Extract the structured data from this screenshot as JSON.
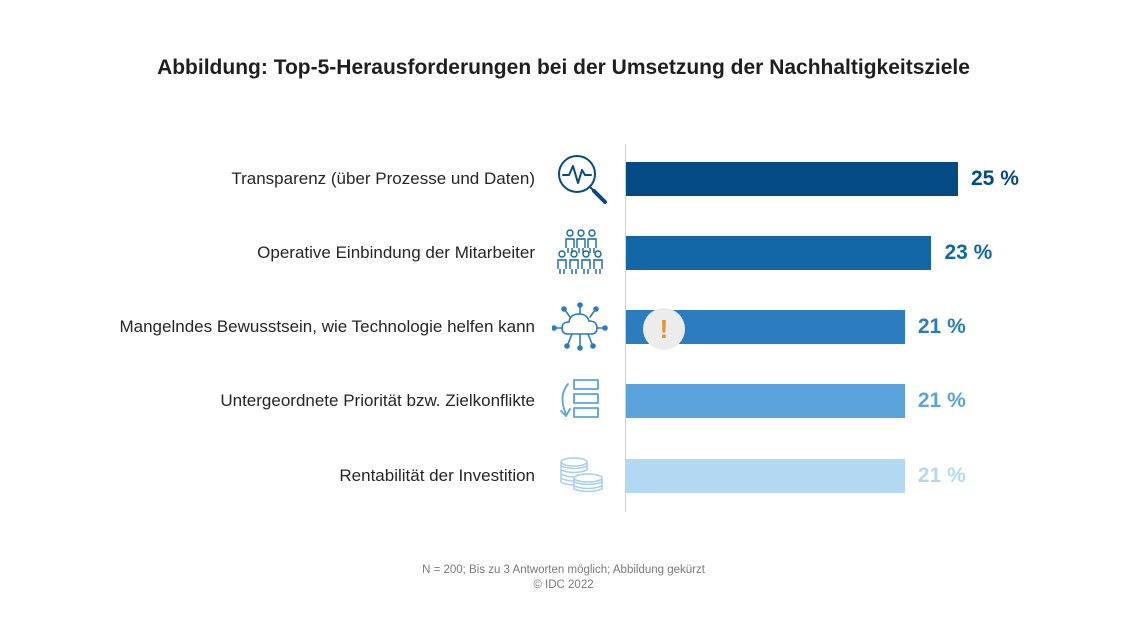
{
  "title": "Abbildung: Top-5-Herausforderungen bei der Umsetzung der Nachhaltigkeitsziele",
  "chart_data": {
    "type": "bar",
    "orientation": "horizontal",
    "categories": [
      "Transparenz (über Prozesse und Daten)",
      "Operative Einbindung der Mitarbeiter",
      "Mangelndes Bewusstsein, wie Technologie helfen kann",
      "Untergeordnete Priorität bzw. Zielkonflikte",
      "Rentabilität der Investition"
    ],
    "values": [
      25,
      23,
      21,
      21,
      21
    ],
    "value_labels": [
      "25 %",
      "23 %",
      "21 %",
      "21 %",
      "21 %"
    ],
    "bar_colors": [
      "#044a85",
      "#1467a6",
      "#2b7dc0",
      "#5aa3db",
      "#b3d8f2"
    ],
    "label_colors": [
      "#044a85",
      "#1467a6",
      "#2b7dc0",
      "#5aa3db",
      "#b3d8f2"
    ],
    "icons": [
      "monitor-magnifier-icon",
      "people-group-icon",
      "cloud-network-icon",
      "arrow-stack-icon",
      "coins-icon"
    ],
    "xlim": [
      0,
      25
    ],
    "grid": false
  },
  "annotation": "!",
  "footer": {
    "note": "N = 200; Bis zu 3 Antworten möglich; Abbildung gekürzt",
    "copyright": "© IDC 2022"
  }
}
